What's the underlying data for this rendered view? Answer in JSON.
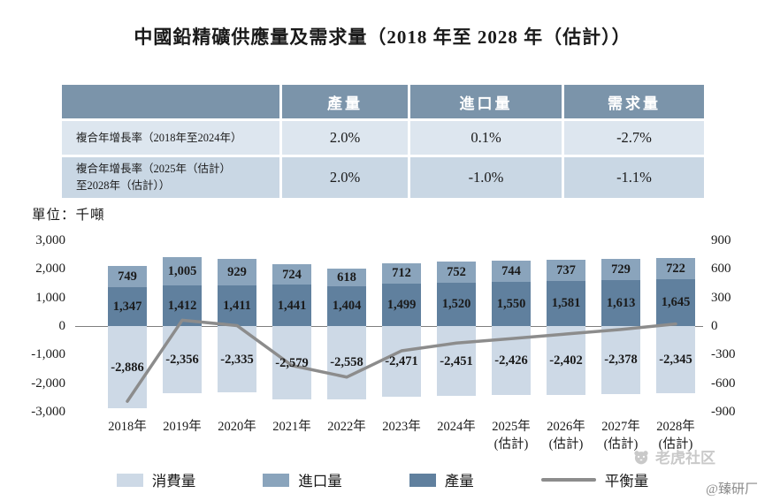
{
  "title": "中國鉛精礦供應量及需求量（2018 年至 2028 年（估計））",
  "table": {
    "corner": "",
    "col_headers": [
      "產量",
      "進口量",
      "需求量"
    ],
    "rows": [
      {
        "label": "複合年增長率（2018年至2024年）",
        "values": [
          "2.0%",
          "0.1%",
          "-2.7%"
        ]
      },
      {
        "label": "複合年增長率（2025年（估計）\n至2028年（估計））",
        "values": [
          "2.0%",
          "-1.0%",
          "-1.1%"
        ]
      }
    ]
  },
  "unit_label": "單位：千噸",
  "chart_data": {
    "type": "bar",
    "subtype": "stacked-bars-with-balance-line",
    "categories": [
      "2018年",
      "2019年",
      "2020年",
      "2021年",
      "2022年",
      "2023年",
      "2024年",
      "2025年\n(估計)",
      "2026年\n(估計)",
      "2027年\n(估計)",
      "2028年\n(估計)"
    ],
    "series": [
      {
        "name": "消費量",
        "type": "bar",
        "role": "neg-bar",
        "axis": "left",
        "color": "#cdd9e6",
        "values": [
          -2886,
          -2356,
          -2335,
          -2579,
          -2558,
          -2471,
          -2451,
          -2426,
          -2402,
          -2378,
          -2345
        ]
      },
      {
        "name": "進口量",
        "type": "bar",
        "role": "stack-top",
        "axis": "left",
        "color": "#8aa4bc",
        "values": [
          749,
          1005,
          929,
          724,
          618,
          712,
          752,
          744,
          737,
          729,
          722
        ]
      },
      {
        "name": "產量",
        "type": "bar",
        "role": "stack-bottom",
        "axis": "left",
        "color": "#60809e",
        "values": [
          1347,
          1412,
          1411,
          1441,
          1404,
          1499,
          1520,
          1550,
          1581,
          1613,
          1645
        ]
      },
      {
        "name": "平衡量",
        "type": "line",
        "role": "line",
        "axis": "right",
        "color": "#8c8c8c",
        "values": [
          -790,
          61,
          5,
          -414,
          -536,
          -260,
          -179,
          -132,
          -84,
          -36,
          22
        ]
      }
    ],
    "left_axis": {
      "min": -3000,
      "max": 3000,
      "ticks": [
        3000,
        2000,
        1000,
        0,
        -1000,
        -2000,
        -3000
      ]
    },
    "right_axis": {
      "min": -900,
      "max": 900,
      "ticks": [
        900,
        600,
        300,
        0,
        -300,
        -600,
        -900
      ]
    },
    "legend": [
      "消費量",
      "進口量",
      "產量",
      "平衡量"
    ],
    "grid": false,
    "legend_position": "bottom"
  },
  "watermark": {
    "community": "老虎社区",
    "handle": "@臻研厂"
  }
}
